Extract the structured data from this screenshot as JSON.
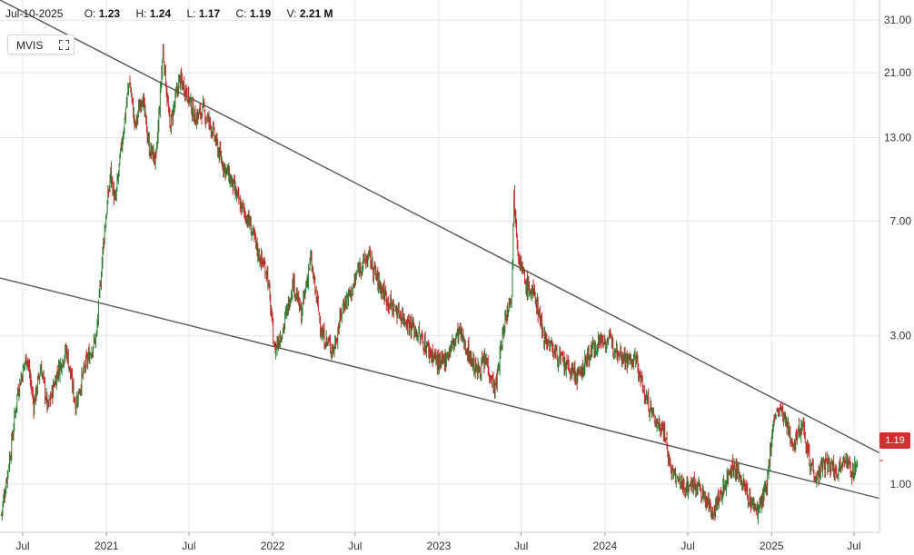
{
  "header": {
    "date": "Jul-10-2025",
    "open_label": "O:",
    "open": "1.23",
    "high_label": "H:",
    "high": "1.24",
    "low_label": "L:",
    "low": "1.17",
    "close_label": "C:",
    "close": "1.19",
    "volume_label": "V:",
    "volume": "2.21 M"
  },
  "symbol": {
    "ticker": "MVIS",
    "expand_icon": "expand-icon"
  },
  "last_price": {
    "label": "1.19",
    "value": 1.19,
    "color": "#d32f2f"
  },
  "colors": {
    "up": "#2e7d32",
    "down": "#c62828",
    "trendline": "#555555",
    "grid": "#e6e6e6"
  },
  "chart_data": {
    "type": "candlestick",
    "title": "",
    "y_scale": "log",
    "ylim": [
      0.7,
      36
    ],
    "y_ticks": [
      1.0,
      3.0,
      7.0,
      13.0,
      21.0,
      31.0
    ],
    "y_tick_labels": [
      "1.00",
      "3.00",
      "7.00",
      "13.00",
      "21.00",
      "31.00"
    ],
    "x_ticks": [
      {
        "date": "2020-07-01",
        "label": "Jul"
      },
      {
        "date": "2021-01-01",
        "label": "2021"
      },
      {
        "date": "2021-07-01",
        "label": "Jul"
      },
      {
        "date": "2022-01-01",
        "label": "2022"
      },
      {
        "date": "2022-07-01",
        "label": "Jul"
      },
      {
        "date": "2023-01-01",
        "label": "2023"
      },
      {
        "date": "2023-07-01",
        "label": "Jul"
      },
      {
        "date": "2024-01-01",
        "label": "2024"
      },
      {
        "date": "2024-07-01",
        "label": "Jul"
      },
      {
        "date": "2025-01-01",
        "label": "2025"
      },
      {
        "date": "2025-07-01",
        "label": "Jul"
      }
    ],
    "xlim": [
      "2020-05-12",
      "2025-08-26"
    ],
    "grid": true,
    "series": [
      {
        "points": [
          [
            "2020-05-15",
            0.8
          ],
          [
            "2020-06-05",
            1.3
          ],
          [
            "2020-06-20",
            2.0
          ],
          [
            "2020-07-10",
            2.6
          ],
          [
            "2020-07-25",
            1.8
          ],
          [
            "2020-08-10",
            2.4
          ],
          [
            "2020-08-25",
            1.75
          ],
          [
            "2020-09-15",
            2.3
          ],
          [
            "2020-10-05",
            2.7
          ],
          [
            "2020-10-25",
            1.8
          ],
          [
            "2020-11-15",
            2.4
          ],
          [
            "2020-12-10",
            3.0
          ],
          [
            "2020-12-25",
            6.0
          ],
          [
            "2021-01-10",
            10.0
          ],
          [
            "2021-01-20",
            8.0
          ],
          [
            "2021-02-05",
            13.0
          ],
          [
            "2021-02-20",
            20.0
          ],
          [
            "2021-03-05",
            14.0
          ],
          [
            "2021-03-20",
            18.0
          ],
          [
            "2021-04-05",
            12.0
          ],
          [
            "2021-04-20",
            11.0
          ],
          [
            "2021-05-05",
            25.0
          ],
          [
            "2021-05-20",
            14.0
          ],
          [
            "2021-06-10",
            20.0
          ],
          [
            "2021-06-25",
            18.5
          ],
          [
            "2021-07-15",
            15.0
          ],
          [
            "2021-08-01",
            16.0
          ],
          [
            "2021-08-20",
            14.0
          ],
          [
            "2021-09-10",
            11.0
          ],
          [
            "2021-10-01",
            9.5
          ],
          [
            "2021-10-20",
            8.0
          ],
          [
            "2021-11-10",
            7.0
          ],
          [
            "2021-12-01",
            5.5
          ],
          [
            "2021-12-20",
            4.8
          ],
          [
            "2022-01-05",
            2.7
          ],
          [
            "2022-01-25",
            3.2
          ],
          [
            "2022-02-15",
            4.5
          ],
          [
            "2022-03-05",
            3.5
          ],
          [
            "2022-03-25",
            5.3
          ],
          [
            "2022-04-20",
            3.0
          ],
          [
            "2022-05-15",
            2.7
          ],
          [
            "2022-06-05",
            3.8
          ],
          [
            "2022-06-25",
            4.2
          ],
          [
            "2022-07-10",
            5.0
          ],
          [
            "2022-08-01",
            5.4
          ],
          [
            "2022-08-20",
            4.5
          ],
          [
            "2022-09-15",
            3.8
          ],
          [
            "2022-10-10",
            3.5
          ],
          [
            "2022-11-05",
            3.2
          ],
          [
            "2022-11-25",
            2.9
          ],
          [
            "2023-01-05",
            2.4
          ],
          [
            "2023-01-25",
            2.7
          ],
          [
            "2023-02-15",
            3.1
          ],
          [
            "2023-03-05",
            2.7
          ],
          [
            "2023-03-25",
            2.3
          ],
          [
            "2023-04-15",
            2.5
          ],
          [
            "2023-05-05",
            2.0
          ],
          [
            "2023-05-25",
            3.3
          ],
          [
            "2023-06-10",
            4.2
          ],
          [
            "2023-06-15",
            8.5
          ],
          [
            "2023-06-25",
            5.5
          ],
          [
            "2023-07-10",
            4.4
          ],
          [
            "2023-08-01",
            4.0
          ],
          [
            "2023-08-20",
            3.0
          ],
          [
            "2023-09-10",
            2.7
          ],
          [
            "2023-10-05",
            2.4
          ],
          [
            "2023-11-05",
            2.2
          ],
          [
            "2023-11-25",
            2.6
          ],
          [
            "2023-12-20",
            2.9
          ],
          [
            "2024-01-10",
            2.9
          ],
          [
            "2024-02-01",
            2.7
          ],
          [
            "2024-02-20",
            2.5
          ],
          [
            "2024-03-10",
            2.5
          ],
          [
            "2024-03-25",
            2.0
          ],
          [
            "2024-04-20",
            1.6
          ],
          [
            "2024-05-10",
            1.5
          ],
          [
            "2024-05-25",
            1.1
          ],
          [
            "2024-06-20",
            0.98
          ],
          [
            "2024-07-20",
            1.0
          ],
          [
            "2024-08-10",
            0.88
          ],
          [
            "2024-08-25",
            0.82
          ],
          [
            "2024-09-15",
            0.95
          ],
          [
            "2024-10-05",
            1.15
          ],
          [
            "2024-10-25",
            1.05
          ],
          [
            "2024-11-15",
            0.88
          ],
          [
            "2024-12-01",
            0.82
          ],
          [
            "2024-12-20",
            0.95
          ],
          [
            "2025-01-05",
            1.6
          ],
          [
            "2025-01-20",
            1.75
          ],
          [
            "2025-02-05",
            1.5
          ],
          [
            "2025-02-20",
            1.35
          ],
          [
            "2025-03-10",
            1.6
          ],
          [
            "2025-03-25",
            1.2
          ],
          [
            "2025-04-10",
            1.05
          ],
          [
            "2025-04-25",
            1.15
          ],
          [
            "2025-05-10",
            1.15
          ],
          [
            "2025-05-25",
            1.1
          ],
          [
            "2025-06-10",
            1.25
          ],
          [
            "2025-06-25",
            1.08
          ],
          [
            "2025-07-10",
            1.19
          ]
        ]
      }
    ],
    "trendlines": [
      {
        "name": "upper",
        "from": [
          "2020-05-12",
          36.0
        ],
        "to": [
          "2025-08-26",
          1.26
        ]
      },
      {
        "name": "lower",
        "from": [
          "2020-05-12",
          4.6
        ],
        "to": [
          "2025-08-26",
          0.9
        ]
      }
    ]
  }
}
